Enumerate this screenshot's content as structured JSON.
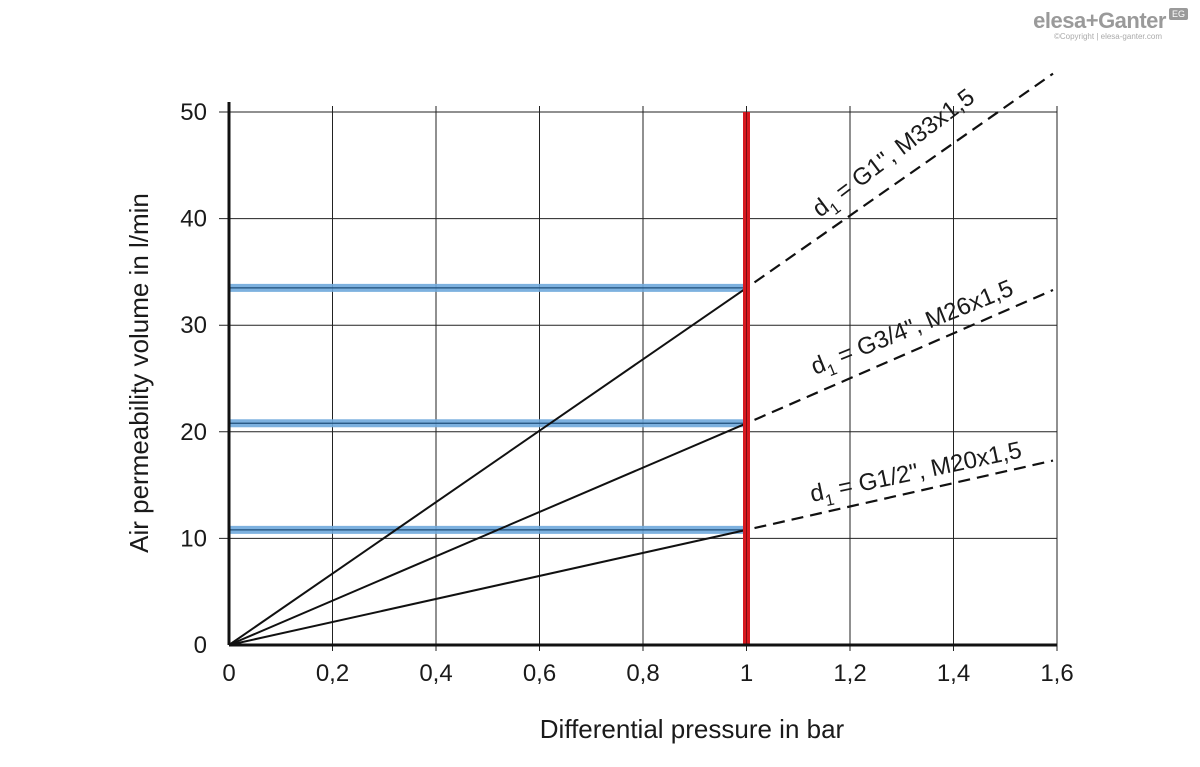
{
  "brand": {
    "name": "elesa+Ganter",
    "badge": "EG",
    "copyright": "©Copyright | elesa-ganter.com"
  },
  "chart_data": {
    "type": "line",
    "xlabel": "Differential pressure in bar",
    "ylabel": "Air permeability volume in l/min",
    "xlim": [
      0,
      1.6
    ],
    "ylim": [
      0,
      50
    ],
    "x_ticks": [
      0,
      0.2,
      0.4,
      0.6,
      0.8,
      1,
      1.2,
      1.4,
      1.6
    ],
    "x_tick_labels": [
      "0",
      "0,2",
      "0,4",
      "0,6",
      "0,8",
      "1",
      "1,2",
      "1,4",
      "1,6"
    ],
    "y_ticks": [
      0,
      10,
      20,
      30,
      40,
      50
    ],
    "y_tick_labels": [
      "0",
      "10",
      "20",
      "30",
      "40",
      "50"
    ],
    "grid": true,
    "series": [
      {
        "label_main": "d",
        "label_sub": "1",
        "label_rest": " = G1\", M33x1,5",
        "solid": [
          [
            0,
            0
          ],
          [
            1,
            33.5
          ]
        ],
        "dashed": [
          [
            1,
            33.5
          ],
          [
            1.6,
            53.6
          ]
        ],
        "marked_value": 33.5
      },
      {
        "label_main": "d",
        "label_sub": "1",
        "label_rest": " = G3/4\", M26x1,5",
        "solid": [
          [
            0,
            0
          ],
          [
            1,
            20.8
          ]
        ],
        "dashed": [
          [
            1,
            20.8
          ],
          [
            1.6,
            33.3
          ]
        ],
        "marked_value": 20.8
      },
      {
        "label_main": "d",
        "label_sub": "1",
        "label_rest": " = G1/2\", M20x1,5",
        "solid": [
          [
            0,
            0
          ],
          [
            1,
            10.8
          ]
        ],
        "dashed": [
          [
            1,
            10.8
          ],
          [
            1.6,
            17.3
          ]
        ],
        "marked_value": 10.8
      }
    ],
    "reference_line_x": 1,
    "colors": {
      "reference": "#d71920",
      "highlight": "#6fa8dc",
      "line": "#111111",
      "grid": "#222222"
    }
  }
}
